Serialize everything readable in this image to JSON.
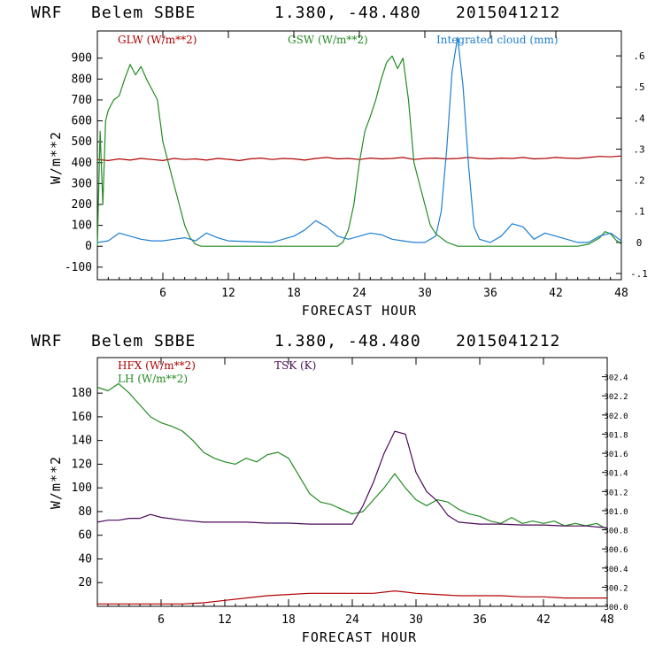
{
  "panels": [
    {
      "header": {
        "model": "WRF",
        "station": "Belem SBBE",
        "coords": "1.380, -48.480",
        "init": "2015041212"
      },
      "legend": [
        {
          "label": "GLW (W/m**2)",
          "color": "#b00000"
        },
        {
          "label": "GSW (W/m**2)",
          "color": "#228b22"
        },
        {
          "label": "Integrated cloud (mm)",
          "color": "#1e7fd0"
        }
      ],
      "ylabel": "W/m**2",
      "xlabel": "FORECAST HOUR"
    },
    {
      "header": {
        "model": "WRF",
        "station": "Belem SBBE",
        "coords": "1.380, -48.480",
        "init": "2015041212"
      },
      "legend": [
        {
          "label": "HFX (W/m**2)",
          "color": "#b00000"
        },
        {
          "label": "LH (W/m**2)",
          "color": "#228b22"
        },
        {
          "label": "TSK (K)",
          "color": "#4b0a5a"
        }
      ],
      "ylabel": "W/m**2",
      "xlabel": "FORECAST HOUR"
    }
  ],
  "chart_data": [
    {
      "type": "line",
      "xlabel": "FORECAST HOUR",
      "ylabel": "W/m**2",
      "xlim": [
        0,
        48
      ],
      "xticks": [
        6,
        12,
        18,
        24,
        30,
        36,
        42,
        48
      ],
      "ylim": [
        -160,
        1030
      ],
      "yticks": [
        -100,
        0,
        100,
        200,
        300,
        400,
        500,
        600,
        700,
        800,
        900
      ],
      "y2lim": [
        -0.12,
        0.68
      ],
      "y2ticks": [
        -0.1,
        0,
        0.1,
        0.2,
        0.3,
        0.4,
        0.5,
        0.6
      ],
      "y2ticklabels": [
        "-.1",
        "0",
        ".1",
        ".2",
        ".3",
        ".4",
        ".5",
        ".6"
      ],
      "grid": false,
      "legend_position": "top",
      "series": [
        {
          "name": "GLW (W/m**2)",
          "axis": "left",
          "color": "#b00000",
          "x": [
            0,
            1,
            2,
            3,
            4,
            5,
            6,
            7,
            8,
            9,
            10,
            11,
            12,
            13,
            14,
            15,
            16,
            17,
            18,
            19,
            20,
            21,
            22,
            23,
            24,
            25,
            26,
            27,
            28,
            29,
            30,
            31,
            32,
            33,
            34,
            35,
            36,
            37,
            38,
            39,
            40,
            41,
            42,
            43,
            44,
            45,
            46,
            47,
            48
          ],
          "y": [
            415,
            410,
            418,
            412,
            420,
            415,
            410,
            420,
            415,
            418,
            412,
            420,
            416,
            410,
            418,
            422,
            415,
            420,
            418,
            412,
            420,
            425,
            418,
            420,
            415,
            422,
            418,
            420,
            425,
            415,
            420,
            422,
            418,
            420,
            425,
            420,
            418,
            422,
            420,
            425,
            418,
            420,
            425,
            422,
            420,
            425,
            430,
            428,
            432
          ]
        },
        {
          "name": "GSW (W/m**2)",
          "axis": "left",
          "color": "#228b22",
          "x": [
            0,
            0.25,
            0.5,
            0.75,
            1,
            1.5,
            2,
            2.5,
            3,
            3.5,
            4,
            4.5,
            5,
            5.5,
            6,
            6.5,
            7,
            7.5,
            8,
            8.5,
            9,
            9.5,
            10,
            19,
            20,
            21,
            22,
            22.5,
            23,
            23.5,
            24,
            24.5,
            25,
            25.5,
            26,
            26.5,
            27,
            27.5,
            28,
            28.5,
            29,
            29.5,
            30,
            30.5,
            31,
            31.5,
            32,
            33,
            44,
            45,
            46,
            46.5,
            47,
            47.5,
            48
          ],
          "y": [
            0,
            550,
            200,
            600,
            650,
            700,
            720,
            800,
            870,
            820,
            860,
            800,
            750,
            700,
            500,
            400,
            300,
            200,
            100,
            40,
            10,
            0,
            0,
            0,
            0,
            0,
            0,
            20,
            80,
            200,
            400,
            550,
            620,
            700,
            800,
            880,
            910,
            850,
            900,
            700,
            400,
            300,
            200,
            100,
            60,
            40,
            20,
            0,
            0,
            10,
            40,
            70,
            60,
            30,
            10
          ]
        },
        {
          "name": "Integrated cloud (mm)",
          "axis": "right",
          "color": "#1e7fd0",
          "x": [
            0,
            1,
            2,
            3,
            4,
            5,
            6,
            7,
            8,
            9,
            10,
            11,
            12,
            16,
            17,
            18,
            19,
            20,
            21,
            22,
            23,
            24,
            25,
            26,
            27,
            28,
            29,
            30,
            31,
            31.5,
            32,
            32.5,
            33,
            33.5,
            34,
            34.5,
            35,
            36,
            37,
            38,
            39,
            40,
            41,
            42,
            43,
            44,
            45,
            46,
            47,
            48
          ],
          "y": [
            0,
            0.005,
            0.03,
            0.02,
            0.01,
            0.005,
            0.005,
            0.01,
            0.015,
            0.005,
            0.03,
            0.015,
            0.005,
            0,
            0.01,
            0.02,
            0.04,
            0.07,
            0.05,
            0.02,
            0.01,
            0.02,
            0.03,
            0.025,
            0.01,
            0.005,
            0,
            0,
            0.02,
            0.1,
            0.3,
            0.55,
            0.66,
            0.5,
            0.25,
            0.05,
            0.01,
            0,
            0.02,
            0.06,
            0.05,
            0.01,
            0.03,
            0.02,
            0.01,
            0,
            0,
            0.02,
            0.03,
            0.005
          ]
        }
      ]
    },
    {
      "type": "line",
      "xlabel": "FORECAST HOUR",
      "ylabel": "W/m**2",
      "xlim": [
        0,
        48
      ],
      "xticks": [
        6,
        12,
        18,
        24,
        30,
        36,
        42,
        48
      ],
      "ylim": [
        0,
        210
      ],
      "yticks": [
        20,
        40,
        60,
        80,
        100,
        120,
        140,
        160,
        180
      ],
      "y2lim": [
        300.0,
        302.6
      ],
      "y2ticks": [
        300.0,
        300.2,
        300.4,
        300.6,
        300.8,
        301.0,
        301.2,
        301.4,
        301.6,
        301.8,
        302.0,
        302.2,
        302.4
      ],
      "y2ticklabels": [
        "300.0",
        "300.2",
        "300.4",
        "300.6",
        "300.8",
        "301.0",
        "301.2",
        "301.4",
        "301.6",
        "301.8",
        "302.0",
        "302.2",
        "302.4"
      ],
      "grid": false,
      "legend_position": "top-left",
      "series": [
        {
          "name": "HFX (W/m**2)",
          "axis": "left",
          "color": "#b00000",
          "x": [
            0,
            2,
            4,
            6,
            8,
            10,
            12,
            14,
            16,
            18,
            20,
            22,
            24,
            26,
            28,
            29,
            30,
            32,
            34,
            36,
            38,
            40,
            42,
            44,
            46,
            48
          ],
          "y": [
            2,
            2,
            2,
            2,
            2,
            3,
            5,
            7,
            9,
            10,
            11,
            11,
            11,
            11,
            13,
            12,
            11,
            10,
            9,
            9,
            9,
            8,
            8,
            7,
            7,
            7
          ]
        },
        {
          "name": "LH (W/m**2)",
          "axis": "left",
          "color": "#228b22",
          "x": [
            0,
            1,
            2,
            3,
            4,
            5,
            6,
            7,
            8,
            9,
            10,
            11,
            12,
            13,
            14,
            15,
            16,
            17,
            18,
            19,
            20,
            21,
            22,
            23,
            24,
            25,
            26,
            27,
            28,
            29,
            30,
            31,
            32,
            33,
            34,
            35,
            36,
            37,
            38,
            39,
            40,
            41,
            42,
            43,
            44,
            45,
            46,
            47,
            48
          ],
          "y": [
            185,
            182,
            188,
            180,
            170,
            160,
            155,
            152,
            148,
            140,
            130,
            125,
            122,
            120,
            125,
            122,
            128,
            130,
            125,
            110,
            95,
            88,
            86,
            82,
            78,
            80,
            90,
            100,
            112,
            100,
            90,
            85,
            90,
            88,
            82,
            78,
            76,
            72,
            70,
            75,
            70,
            72,
            70,
            72,
            68,
            70,
            68,
            70,
            65
          ]
        },
        {
          "name": "TSK (K)",
          "axis": "right",
          "color": "#4b0a5a",
          "x": [
            0,
            1,
            2,
            3,
            4,
            5,
            6,
            8,
            10,
            12,
            14,
            16,
            18,
            20,
            22,
            24,
            25,
            26,
            27,
            28,
            29,
            30,
            31,
            32,
            33,
            34,
            36,
            38,
            40,
            42,
            44,
            46,
            48
          ],
          "y": [
            300.88,
            300.9,
            300.9,
            300.92,
            300.92,
            300.96,
            300.93,
            300.9,
            300.88,
            300.88,
            300.88,
            300.87,
            300.87,
            300.86,
            300.86,
            300.86,
            301.05,
            301.3,
            301.6,
            301.83,
            301.8,
            301.4,
            301.2,
            301.1,
            300.95,
            300.88,
            300.86,
            300.86,
            300.85,
            300.85,
            300.84,
            300.84,
            300.82
          ]
        }
      ]
    }
  ]
}
